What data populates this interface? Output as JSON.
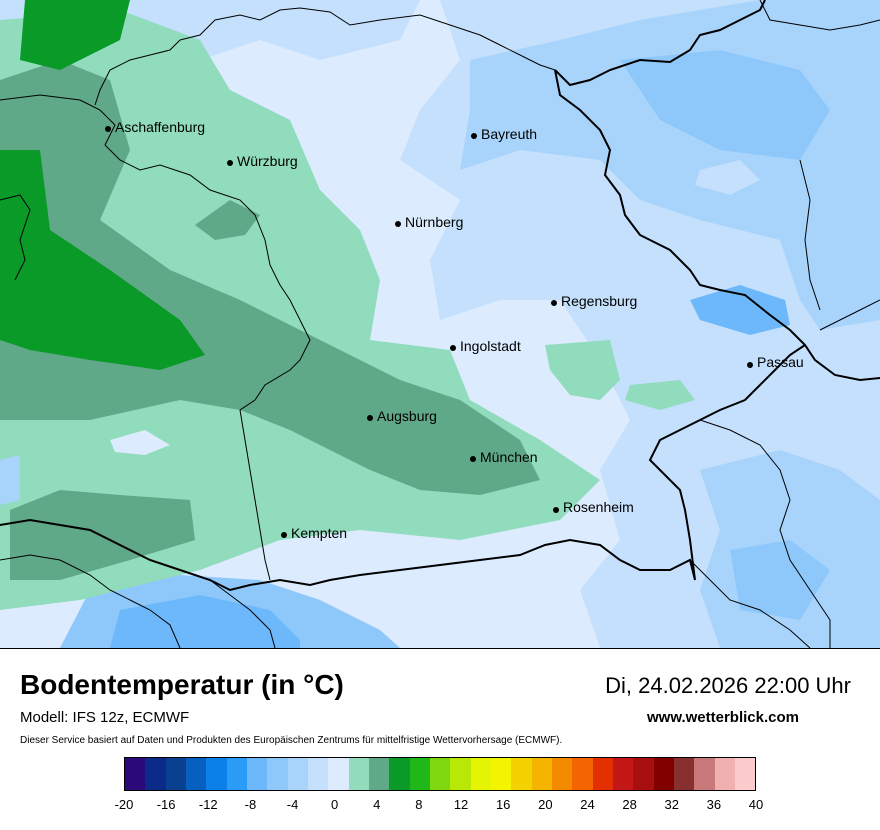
{
  "map": {
    "cities": [
      {
        "name": "Aschaffenburg"
      },
      {
        "name": "Würzburg"
      },
      {
        "name": "Bayreuth"
      },
      {
        "name": "Nürnberg"
      },
      {
        "name": "Regensburg"
      },
      {
        "name": "Ingolstadt"
      },
      {
        "name": "Passau"
      },
      {
        "name": "Augsburg"
      },
      {
        "name": "München"
      },
      {
        "name": "Rosenheim"
      },
      {
        "name": "Kempten"
      }
    ]
  },
  "footer": {
    "title": "Bodentemperatur (in °C)",
    "model": "Modell: IFS 12z, ECMWF",
    "disclaimer": "Dieser Service basiert auf Daten und Produkten des Europäischen Zentrums für mittelfristige Wettervorhersage (ECMWF).",
    "datetime": "Di, 24.02.2026 22:00 Uhr",
    "website": "www.wetterblick.com"
  },
  "legend": {
    "colors": [
      "#2a0a7a",
      "#0b2a8a",
      "#0a4090",
      "#0560c0",
      "#0a80e8",
      "#2a9cf8",
      "#6cb8fa",
      "#8ec8fb",
      "#a8d4fc",
      "#c4e0fd",
      "#dcecfe",
      "#90dcbc",
      "#5fa888",
      "#0a9a28",
      "#20b818",
      "#7ed810",
      "#b8e808",
      "#e4f404",
      "#f4f400",
      "#f4d200",
      "#f4b400",
      "#f48a00",
      "#f46400",
      "#e43000",
      "#c41818",
      "#a81010",
      "#800000",
      "#883030",
      "#c87878",
      "#f0b0b0",
      "#fccccc"
    ],
    "ticks": [
      "-20",
      "-16",
      "-12",
      "-8",
      "-4",
      "0",
      "4",
      "8",
      "12",
      "16",
      "20",
      "24",
      "28",
      "32",
      "36",
      "40"
    ]
  }
}
